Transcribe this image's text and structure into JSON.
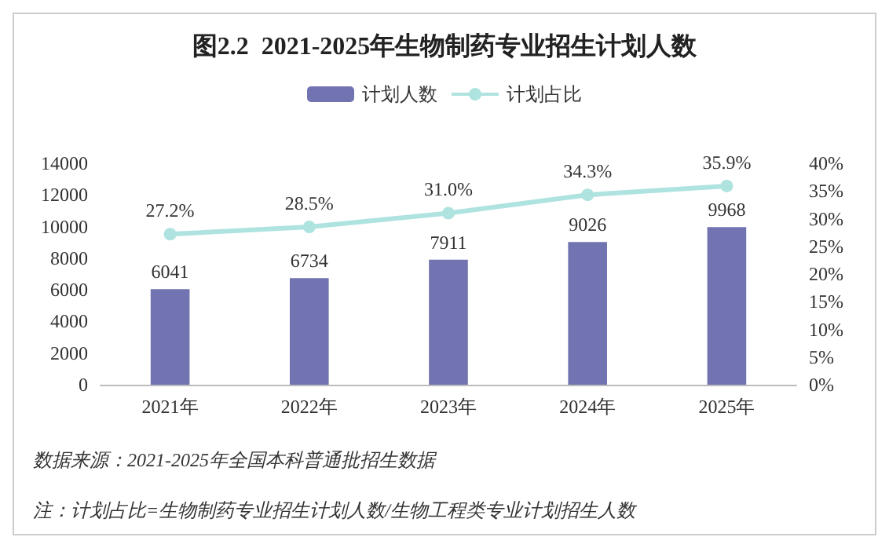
{
  "chart_data": {
    "type": "bar",
    "title": "图2.2  2021-2025年生物制药专业招生计划人数",
    "categories": [
      "2021年",
      "2022年",
      "2023年",
      "2024年",
      "2025年"
    ],
    "series": [
      {
        "name": "计划人数",
        "color": "#7174b0",
        "values": [
          6041,
          6734,
          7911,
          9026,
          9968
        ],
        "value_labels": [
          "6041",
          "6734",
          "7911",
          "9026",
          "9968"
        ]
      },
      {
        "name": "计划占比",
        "type": "line",
        "axis": "y2",
        "color": "#aee3e0",
        "marker": "circle",
        "values": [
          27.2,
          28.5,
          31.0,
          34.3,
          35.9
        ],
        "value_labels": [
          "27.2%",
          "28.5%",
          "31.0%",
          "34.3%",
          "35.9%"
        ]
      }
    ],
    "ylim": [
      0,
      14000
    ],
    "yticks": [
      0,
      2000,
      4000,
      6000,
      8000,
      10000,
      12000,
      14000
    ],
    "y2lim": [
      0,
      40
    ],
    "y2ticks": [
      {
        "value": 0,
        "label": "0%"
      },
      {
        "value": 5,
        "label": "5%"
      },
      {
        "value": 10,
        "label": "10%"
      },
      {
        "value": 15,
        "label": "15%"
      },
      {
        "value": 20,
        "label": "20%"
      },
      {
        "value": 25,
        "label": "25%"
      },
      {
        "value": 30,
        "label": "30%"
      },
      {
        "value": 35,
        "label": "35%"
      },
      {
        "value": 40,
        "label": "40%"
      }
    ],
    "legend": "top",
    "grid": false,
    "annotations": [
      "数据来源：2021-2025年全国本科普通批招生数据",
      "注：计划占比=生物制药专业招生计划人数/生物工程类专业计划招生人数"
    ]
  }
}
